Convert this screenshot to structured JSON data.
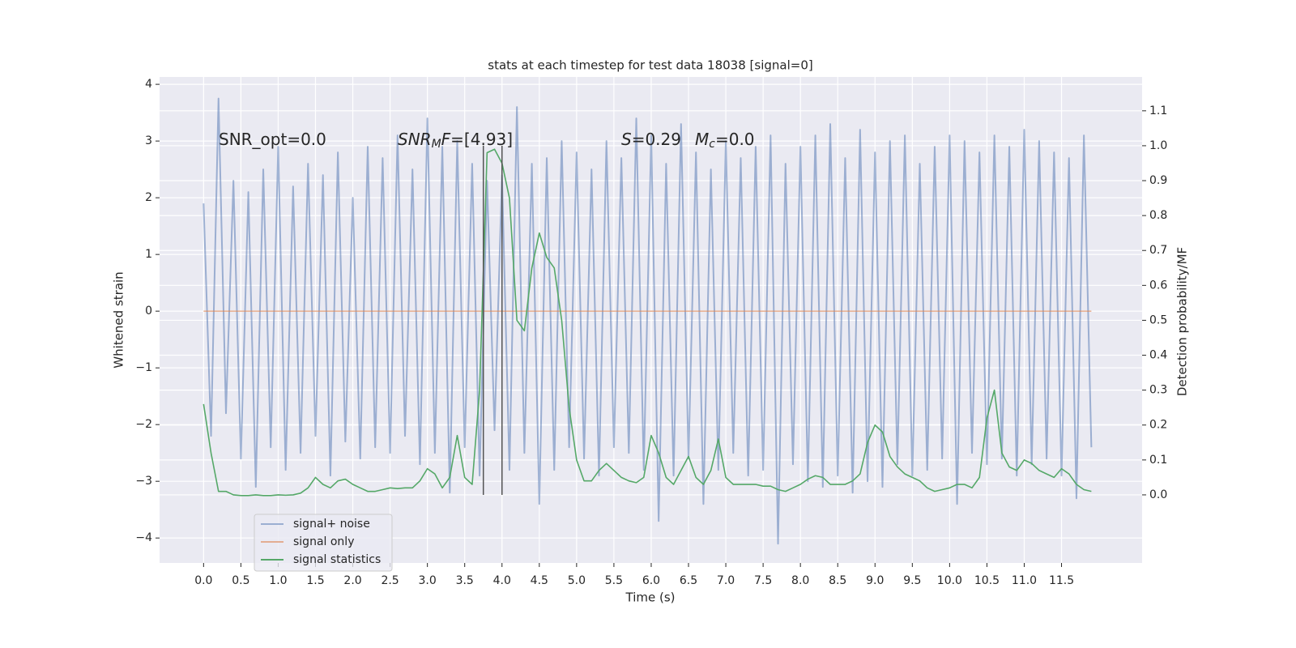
{
  "chart_data": {
    "type": "line",
    "title": "stats at each timestep for test data 18038 [signal=0]",
    "xlabel": "Time (s)",
    "ylabel": "Whitened strain",
    "y2label": "Detection probability/MF",
    "xlim": [
      -0.59,
      12.58
    ],
    "ylim": [
      -4.44,
      4.13
    ],
    "y2lim": [
      -0.195,
      1.197
    ],
    "xticks": [
      {
        "value": 0,
        "label": "0.0"
      },
      0.5,
      {
        "value": 1,
        "label": "1.0"
      },
      1.5,
      {
        "value": 2,
        "label": "2.0"
      },
      2.5,
      {
        "value": 3,
        "label": "3.0"
      },
      3.5,
      {
        "value": 4,
        "label": "4.0"
      },
      4.5,
      {
        "value": 5,
        "label": "5.0"
      },
      5.5,
      {
        "value": 6,
        "label": "6.0"
      },
      6.5,
      {
        "value": 7,
        "label": "7.0"
      },
      7.5,
      {
        "value": 8,
        "label": "8.0"
      },
      8.5,
      {
        "value": 9,
        "label": "9.0"
      },
      9.5,
      {
        "value": 10,
        "label": "10.0"
      },
      10.5,
      {
        "value": 11,
        "label": "11.0"
      },
      11.5
    ],
    "yticks": [
      {
        "value": -4,
        "label": "−4"
      },
      {
        "value": -3,
        "label": "−3"
      },
      {
        "value": -2,
        "label": "−2"
      },
      {
        "value": -1,
        "label": "−1"
      },
      0,
      1,
      2,
      3,
      4
    ],
    "y2ticks": [
      {
        "value": 0,
        "label": "0.0"
      },
      0.1,
      0.2,
      0.3,
      0.4,
      0.5,
      0.6,
      0.7,
      0.8,
      0.9,
      {
        "value": 1,
        "label": "1.0"
      },
      1.1
    ],
    "grid": true,
    "legend_loc": "lower left",
    "x": [
      0,
      0.1,
      0.2,
      0.3,
      0.4,
      0.5,
      0.6,
      0.7,
      0.8,
      0.9,
      1,
      1.1,
      1.2,
      1.3,
      1.4,
      1.5,
      1.6,
      1.7,
      1.8,
      1.9,
      2,
      2.1,
      2.2,
      2.3,
      2.4,
      2.5,
      2.6,
      2.7,
      2.8,
      2.9,
      3,
      3.1,
      3.2,
      3.3,
      3.4,
      3.5,
      3.6,
      3.7,
      3.8,
      3.9,
      4,
      4.1,
      4.2,
      4.3,
      4.4,
      4.5,
      4.6,
      4.7,
      4.8,
      4.9,
      5,
      5.1,
      5.2,
      5.3,
      5.4,
      5.5,
      5.6,
      5.7,
      5.8,
      5.9,
      6,
      6.1,
      6.2,
      6.3,
      6.4,
      6.5,
      6.6,
      6.7,
      6.8,
      6.9,
      7,
      7.1,
      7.2,
      7.3,
      7.4,
      7.5,
      7.6,
      7.7,
      7.8,
      7.9,
      8,
      8.1,
      8.2,
      8.3,
      8.4,
      8.5,
      8.6,
      8.7,
      8.8,
      8.9,
      9,
      9.1,
      9.2,
      9.3,
      9.4,
      9.5,
      9.6,
      9.7,
      9.8,
      9.9,
      10,
      10.1,
      10.2,
      10.3,
      10.4,
      10.5,
      10.6,
      10.7,
      10.8,
      10.9,
      11,
      11.1,
      11.2,
      11.3,
      11.4,
      11.5,
      11.6,
      11.7,
      11.8,
      11.9
    ],
    "series": [
      {
        "name": "signal+ noise",
        "color": "#4c72b0",
        "opacity": 0.5,
        "values": [
          1.9,
          -2.2,
          3.75,
          -1.8,
          2.3,
          -2.6,
          2.1,
          -3.1,
          2.5,
          -2.4,
          2.9,
          -2.8,
          2.2,
          -2.5,
          2.6,
          -2.2,
          2.4,
          -2.9,
          2.8,
          -2.3,
          2.0,
          -2.6,
          2.9,
          -2.4,
          2.7,
          -2.5,
          3.1,
          -2.2,
          2.5,
          -2.7,
          3.4,
          -2.5,
          2.9,
          -3.2,
          3.0,
          -2.4,
          2.6,
          -2.9,
          2.3,
          -2.1,
          2.4,
          -2.8,
          3.6,
          -2.5,
          2.6,
          -3.4,
          2.7,
          -2.8,
          3.0,
          -2.4,
          2.8,
          -2.6,
          2.5,
          -2.9,
          3.0,
          -2.4,
          2.7,
          -2.5,
          3.4,
          -2.8,
          3.1,
          -3.7,
          2.6,
          -2.9,
          3.3,
          -2.6,
          2.8,
          -3.4,
          2.5,
          -2.8,
          3.0,
          -2.5,
          2.7,
          -2.9,
          2.9,
          -2.8,
          3.1,
          -4.1,
          2.6,
          -2.7,
          2.9,
          -3.0,
          3.1,
          -3.1,
          3.3,
          -2.9,
          2.7,
          -3.2,
          3.2,
          -3.0,
          2.8,
          -3.1,
          3.0,
          -2.7,
          3.1,
          -2.9,
          2.6,
          -2.8,
          2.9,
          -2.6,
          3.1,
          -3.4,
          3.0,
          -2.5,
          2.8,
          -2.7,
          3.1,
          -2.6,
          2.9,
          -2.9,
          3.2,
          -2.7,
          3.0,
          -2.6,
          2.8,
          -2.9,
          2.7,
          -3.3,
          3.1,
          -2.4
        ]
      },
      {
        "name": "signal only",
        "color": "#dd8452",
        "opacity": 0.6,
        "values": [
          0,
          0,
          0,
          0,
          0,
          0,
          0,
          0,
          0,
          0,
          0,
          0,
          0,
          0,
          0,
          0,
          0,
          0,
          0,
          0,
          0,
          0,
          0,
          0,
          0,
          0,
          0,
          0,
          0,
          0,
          0,
          0,
          0,
          0,
          0,
          0,
          0,
          0,
          0,
          0,
          0,
          0,
          0,
          0,
          0,
          0,
          0,
          0,
          0,
          0,
          0,
          0,
          0,
          0,
          0,
          0,
          0,
          0,
          0,
          0,
          0,
          0,
          0,
          0,
          0,
          0,
          0,
          0,
          0,
          0,
          0,
          0,
          0,
          0,
          0,
          0,
          0,
          0,
          0,
          0,
          0,
          0,
          0,
          0,
          0,
          0,
          0,
          0,
          0,
          0,
          0,
          0,
          0,
          0,
          0,
          0,
          0,
          0,
          0,
          0,
          0,
          0,
          0,
          0,
          0,
          0,
          0,
          0,
          0,
          0,
          0,
          0,
          0,
          0,
          0,
          0,
          0,
          0,
          0,
          0
        ]
      },
      {
        "name": "signal statistics",
        "color": "#55a868",
        "opacity": 1,
        "axis": "y2",
        "values": [
          0.26,
          0.12,
          0.01,
          0.01,
          0.0,
          -0.002,
          -0.002,
          0.0,
          -0.002,
          -0.002,
          0.0,
          -0.001,
          0.0,
          0.005,
          0.02,
          0.05,
          0.03,
          0.02,
          0.04,
          0.045,
          0.03,
          0.02,
          0.01,
          0.01,
          0.015,
          0.02,
          0.018,
          0.02,
          0.02,
          0.04,
          0.075,
          0.06,
          0.02,
          0.05,
          0.17,
          0.05,
          0.03,
          0.3,
          0.98,
          0.99,
          0.95,
          0.85,
          0.5,
          0.47,
          0.65,
          0.75,
          0.68,
          0.65,
          0.5,
          0.25,
          0.1,
          0.04,
          0.04,
          0.07,
          0.09,
          0.07,
          0.05,
          0.04,
          0.035,
          0.05,
          0.17,
          0.12,
          0.05,
          0.03,
          0.07,
          0.11,
          0.05,
          0.03,
          0.07,
          0.16,
          0.05,
          0.03,
          0.03,
          0.03,
          0.03,
          0.025,
          0.025,
          0.015,
          0.01,
          0.02,
          0.03,
          0.045,
          0.055,
          0.05,
          0.03,
          0.03,
          0.03,
          0.04,
          0.06,
          0.15,
          0.2,
          0.18,
          0.11,
          0.08,
          0.06,
          0.05,
          0.04,
          0.02,
          0.01,
          0.015,
          0.02,
          0.03,
          0.03,
          0.02,
          0.05,
          0.22,
          0.3,
          0.12,
          0.08,
          0.07,
          0.1,
          0.09,
          0.07,
          0.06,
          0.05,
          0.075,
          0.06,
          0.03,
          0.015,
          0.01
        ]
      }
    ],
    "vlines": [
      {
        "x": 3.75,
        "ymin": 0,
        "ymax": 1,
        "axis": "y2",
        "color": "#555555"
      },
      {
        "x": 4.0,
        "ymin": 0,
        "ymax": 1,
        "axis": "y2",
        "color": "#555555"
      }
    ],
    "annotations": [
      {
        "segments": [
          {
            "text": "SNR_opt=0.0"
          }
        ]
      },
      {
        "segments": [
          {
            "text": "SNR",
            "italic": true
          },
          {
            "text": "M",
            "italic": true,
            "sub": true
          },
          {
            "text": "F",
            "italic": true
          },
          {
            "text": "=[4.93]"
          }
        ]
      },
      {
        "segments": [
          {
            "text": "S",
            "italic": true
          },
          {
            "text": "=0.29"
          }
        ]
      },
      {
        "segments": [
          {
            "text": "M",
            "italic": true
          },
          {
            "text": "c",
            "italic": true,
            "sub": true
          },
          {
            "text": "=0.0"
          }
        ]
      }
    ]
  }
}
